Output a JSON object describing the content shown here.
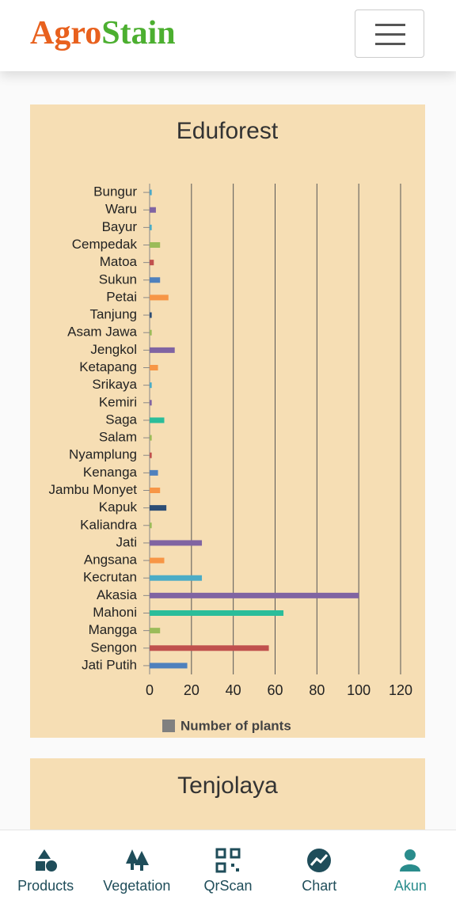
{
  "header": {
    "logo": [
      "Agro",
      "Stain"
    ]
  },
  "chart_data": {
    "type": "hbar",
    "title": "Eduforest",
    "categories": [
      "Bungur",
      "Waru",
      "Bayur",
      "Cempedak",
      "Matoa",
      "Sukun",
      "Petai",
      "Tanjung",
      "Asam Jawa",
      "Jengkol",
      "Ketapang",
      "Srikaya",
      "Kemiri",
      "Saga",
      "Salam",
      "Nyamplung",
      "Kenanga",
      "Jambu Monyet",
      "Kapuk",
      "Kaliandra",
      "Jati",
      "Angsana",
      "Kecrutan",
      "Akasia",
      "Mahoni",
      "Mangga",
      "Sengon",
      "Jati Putih"
    ],
    "series": [
      {
        "name": "Number of plants",
        "color": "#808080",
        "values": [
          1,
          3,
          1,
          5,
          2,
          5,
          9,
          1,
          1,
          12,
          4,
          1,
          1,
          7,
          1,
          1,
          4,
          5,
          8,
          1,
          25,
          7,
          25,
          100,
          64,
          5,
          57,
          18
        ]
      }
    ],
    "colors": [
      "#4aa8c8",
      "#8064a2",
      "#4bacc6",
      "#9bbb59",
      "#c0504d",
      "#4f81bd",
      "#f79646",
      "#2c4d75",
      "#9bbb59",
      "#8064a2",
      "#f79646",
      "#4bacc6",
      "#8064a2",
      "#2bbd9a",
      "#9bbb59",
      "#c0504d",
      "#4f81bd",
      "#f79646",
      "#2c4d75",
      "#9bbb59",
      "#8064a2",
      "#f79646",
      "#4bacc6",
      "#8064a2",
      "#2bbd9a",
      "#9bbb59",
      "#c0504d",
      "#4f81bd"
    ],
    "xlim": [
      0,
      120
    ],
    "xticks": [
      0,
      20,
      40,
      60,
      80,
      100,
      120
    ],
    "grid": true,
    "legend": "bottom"
  },
  "cards": [
    {
      "title": "Tenjolaya"
    }
  ],
  "nav": [
    {
      "label": "Products"
    },
    {
      "label": "Vegetation"
    },
    {
      "label": "QrScan"
    },
    {
      "label": "Chart"
    },
    {
      "label": "Akun",
      "active": true
    }
  ]
}
